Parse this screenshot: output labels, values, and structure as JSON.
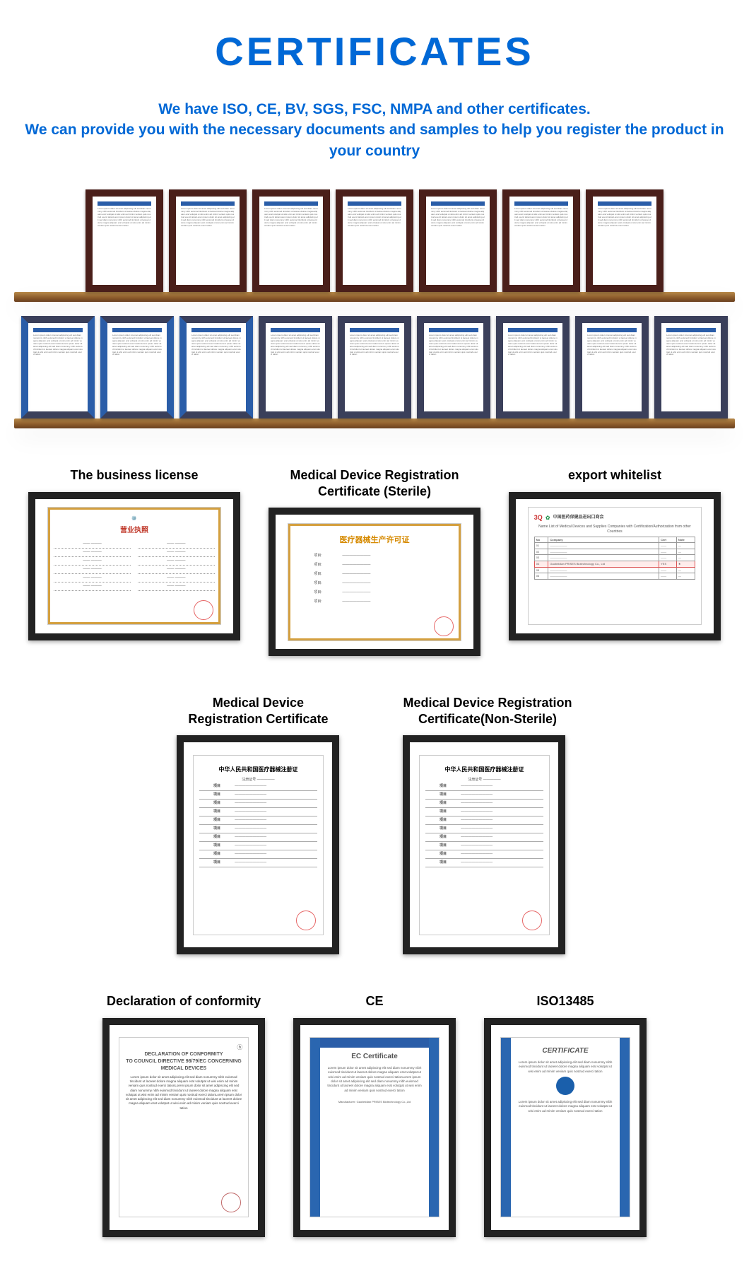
{
  "title": "CERTIFICATES",
  "subtitle_line1": "We have ISO, CE, BV, SGS, FSC, NMPA and other certificates.",
  "subtitle_line2": "We can provide you with the necessary documents and samples to help you register the product in your country",
  "colors": {
    "brand_blue": "#0068d6",
    "dark_frame": "#222222",
    "wood_frame": "#4a1f1a",
    "shelf_top": "#b88a4a",
    "shelf_bottom": "#6a4020",
    "orange_border": "#d4a040",
    "stamp_red": "#d33333"
  },
  "shelves": [
    {
      "count": 7,
      "style": "wood"
    },
    {
      "count": 9,
      "style": "blue"
    }
  ],
  "labeled": {
    "row1": [
      {
        "label": "The business license",
        "shape": "landscape",
        "doc_type": "business_license",
        "title_cn": "营业执照"
      },
      {
        "label": "Medical Device Registration\nCertificate (Sterile)",
        "shape": "landscape",
        "doc_type": "sterile_permit",
        "title_cn": "医疗器械生产许可证"
      },
      {
        "label": "export whitelist",
        "shape": "landscape",
        "doc_type": "whitelist",
        "title_en": "Name List of Medical Devices and Supplies Companies with Certification/Authorization from other Countries",
        "title_cn": "中国医药保健品进出口商会"
      }
    ],
    "row2": [
      {
        "label": "Medical Device\nRegistration Certificate",
        "shape": "portrait",
        "doc_type": "reg_cert",
        "title_cn": "中华人民共和国医疗器械注册证"
      },
      {
        "label": "Medical Device Registration\nCertificate(Non-Sterile)",
        "shape": "portrait",
        "doc_type": "reg_cert",
        "title_cn": "中华人民共和国医疗器械注册证"
      }
    ],
    "row3": [
      {
        "label": "Declaration of conformity",
        "shape": "portrait",
        "doc_type": "doc",
        "title_en": "DECLARATION OF CONFORMITY\nTO COUNCIL DIRECTIVE 98/79/EC CONCERNING\nMEDICAL DEVICES"
      },
      {
        "label": "CE",
        "shape": "portrait",
        "doc_type": "ce",
        "title_en": "EC Certificate"
      },
      {
        "label": "ISO13485",
        "shape": "portrait",
        "doc_type": "iso",
        "title_en": "CERTIFICATE"
      }
    ]
  },
  "filler_text": "Lorem ipsum dolor sit amet adipiscing elit sed diam nonummy nibh euismod tincidunt ut laoreet dolore magna aliquam erat volutpat ut wisi enim ad minim veniam quis nostrud exerci tation"
}
